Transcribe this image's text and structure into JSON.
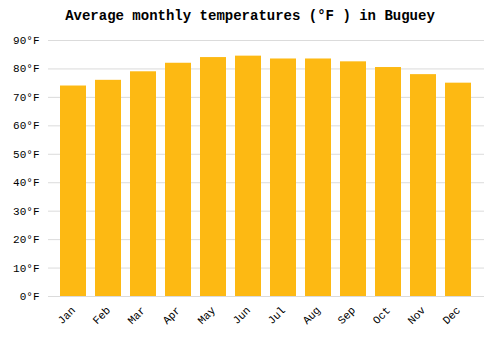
{
  "chart_data": {
    "type": "bar",
    "title": "Average monthly temperatures (°F ) in Buguey",
    "categories": [
      "Jan",
      "Feb",
      "Mar",
      "Apr",
      "May",
      "Jun",
      "Jul",
      "Aug",
      "Sep",
      "Oct",
      "Nov",
      "Dec"
    ],
    "values": [
      74,
      76,
      79,
      82,
      84,
      84.5,
      83.5,
      83.5,
      82.5,
      80.5,
      78,
      75
    ],
    "color": "#FDB913",
    "ylim": [
      0,
      90
    ],
    "yticks": [
      {
        "value": 0,
        "label": "0°F"
      },
      {
        "value": 10,
        "label": "10°F"
      },
      {
        "value": 20,
        "label": "20°F"
      },
      {
        "value": 30,
        "label": "30°F"
      },
      {
        "value": 40,
        "label": "40°F"
      },
      {
        "value": 50,
        "label": "50°F"
      },
      {
        "value": 60,
        "label": "60°F"
      },
      {
        "value": 70,
        "label": "70°F"
      },
      {
        "value": 80,
        "label": "80°F"
      },
      {
        "value": 90,
        "label": "90°F"
      }
    ],
    "grid": true
  }
}
